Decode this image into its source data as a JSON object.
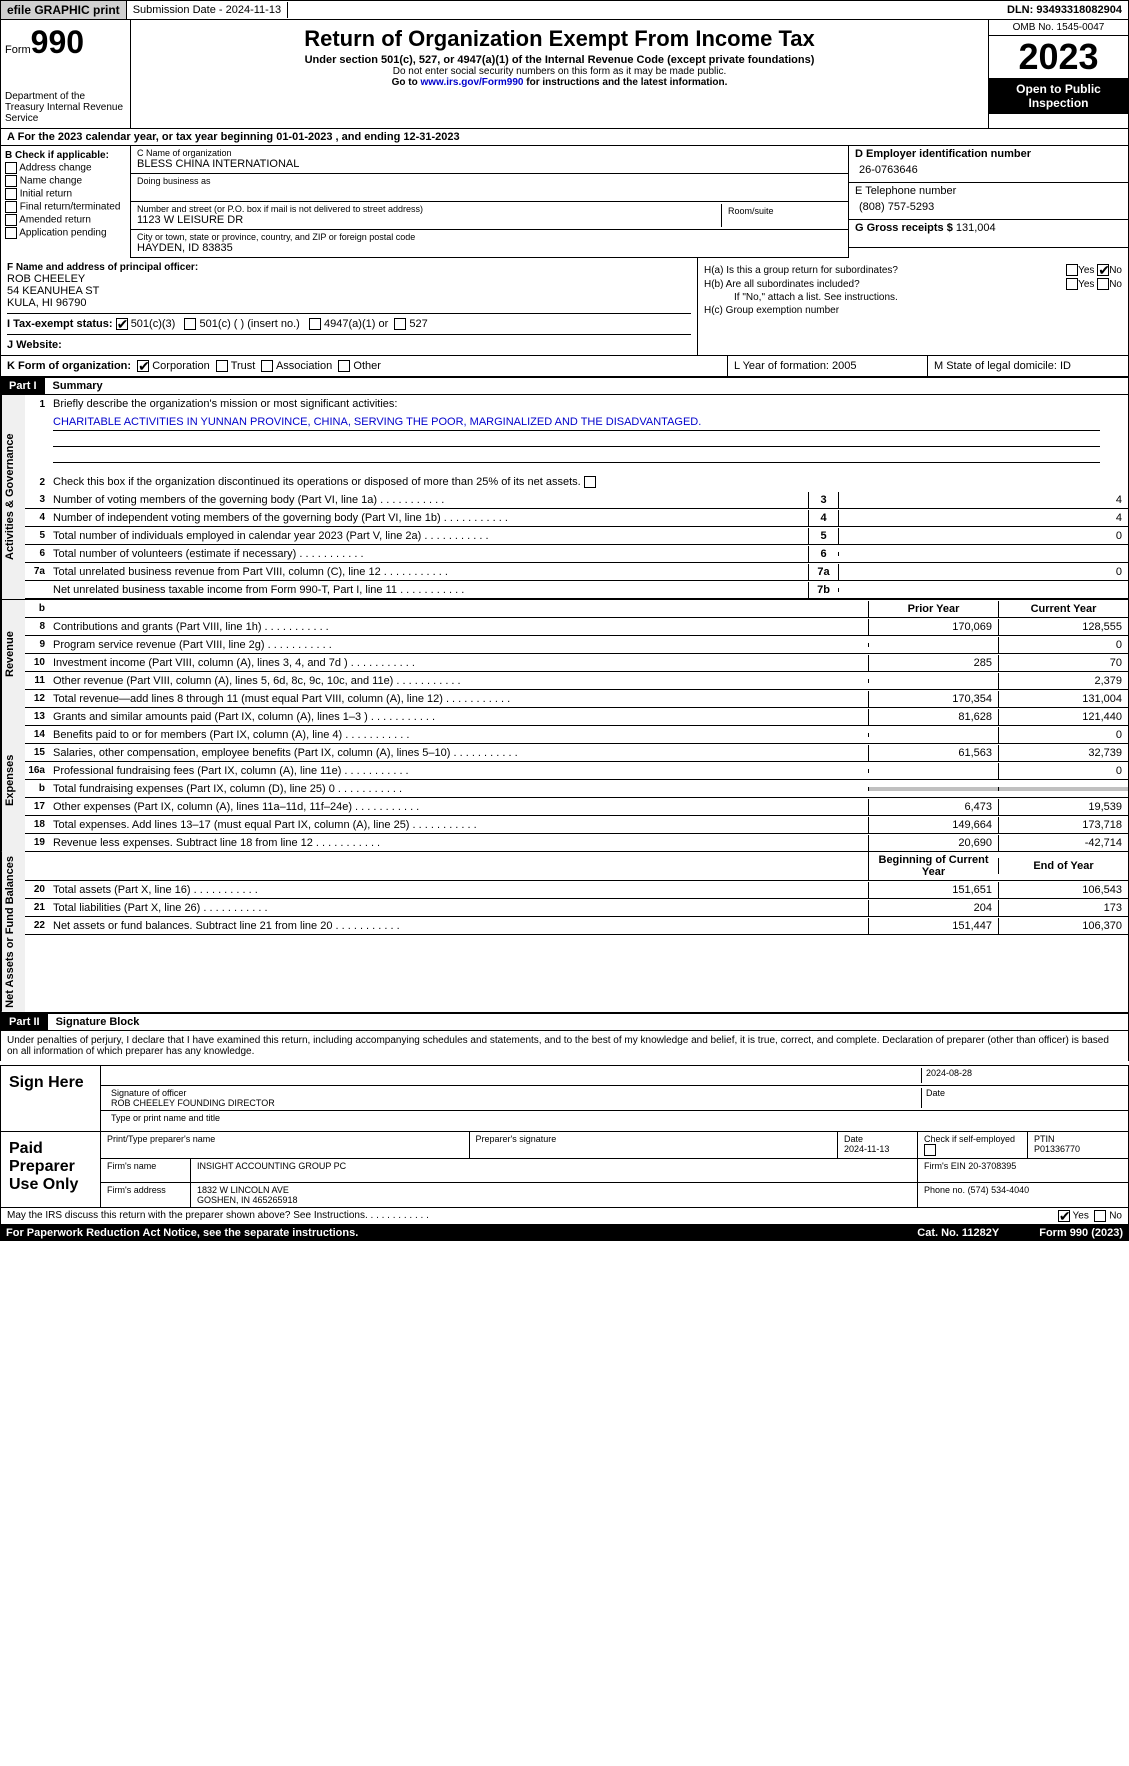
{
  "topbar": {
    "efile": "efile GRAPHIC print",
    "submission": "Submission Date - 2024-11-13",
    "dln": "DLN: 93493318082904"
  },
  "header": {
    "form": "Form",
    "num": "990",
    "dept": "Department of the Treasury Internal Revenue Service",
    "title": "Return of Organization Exempt From Income Tax",
    "sub": "Under section 501(c), 527, or 4947(a)(1) of the Internal Revenue Code (except private foundations)",
    "ssn": "Do not enter social security numbers on this form as it may be made public.",
    "goto_pre": "Go to ",
    "goto_link": "www.irs.gov/Form990",
    "goto_post": " for instructions and the latest information.",
    "omb": "OMB No. 1545-0047",
    "year": "2023",
    "inspect": "Open to Public Inspection"
  },
  "rowA": "For the 2023 calendar year, or tax year beginning 01-01-2023     , and ending 12-31-2023",
  "boxB": {
    "title": "B Check if applicable:",
    "opts": [
      "Address change",
      "Name change",
      "Initial return",
      "Final return/terminated",
      "Amended return",
      "Application pending"
    ]
  },
  "boxC": {
    "name_lbl": "C Name of organization",
    "name": "BLESS CHINA INTERNATIONAL",
    "dba_lbl": "Doing business as",
    "dba": "",
    "street_lbl": "Number and street (or P.O. box if mail is not delivered to street address)",
    "street": "1123 W LEISURE DR",
    "room_lbl": "Room/suite",
    "city_lbl": "City or town, state or province, country, and ZIP or foreign postal code",
    "city": "HAYDEN, ID  83835"
  },
  "boxD": {
    "ein_lbl": "D Employer identification number",
    "ein": "26-0763646",
    "phone_lbl": "E Telephone number",
    "phone": "(808) 757-5293",
    "gross_lbl": "G Gross receipts $",
    "gross": "131,004"
  },
  "boxF": {
    "lbl": "F  Name and address of principal officer:",
    "name": "ROB CHEELEY",
    "addr1": "54 KEANUHEA ST",
    "addr2": "KULA, HI  96790"
  },
  "boxH": {
    "a": "H(a)  Is this a group return for subordinates?",
    "b": "H(b)  Are all subordinates included?",
    "note": "If \"No,\" attach a list. See instructions.",
    "c": "H(c)  Group exemption number",
    "yes": "Yes",
    "no": "No"
  },
  "rowI": {
    "lbl": "I   Tax-exempt status:",
    "o1": "501(c)(3)",
    "o2": "501(c) (  ) (insert no.)",
    "o3": "4947(a)(1) or",
    "o4": "527"
  },
  "rowJ": "J   Website:",
  "rowK": {
    "lbl": "K Form of organization:",
    "o1": "Corporation",
    "o2": "Trust",
    "o3": "Association",
    "o4": "Other",
    "L": "L Year of formation: 2005",
    "M": "M State of legal domicile: ID"
  },
  "part1": {
    "hdr": "Part I",
    "title": "Summary",
    "l1_lbl": "Briefly describe the organization's mission or most significant activities:",
    "l1_val": "CHARITABLE ACTIVITIES IN YUNNAN PROVINCE, CHINA, SERVING THE POOR, MARGINALIZED AND THE DISADVANTAGED.",
    "l2": "Check this box  if the organization discontinued its operations or disposed of more than 25% of its net assets.",
    "lines_gov": [
      {
        "n": "3",
        "d": "Number of voting members of the governing body (Part VI, line 1a)",
        "b": "3",
        "v": "4"
      },
      {
        "n": "4",
        "d": "Number of independent voting members of the governing body (Part VI, line 1b)",
        "b": "4",
        "v": "4"
      },
      {
        "n": "5",
        "d": "Total number of individuals employed in calendar year 2023 (Part V, line 2a)",
        "b": "5",
        "v": "0"
      },
      {
        "n": "6",
        "d": "Total number of volunteers (estimate if necessary)",
        "b": "6",
        "v": ""
      },
      {
        "n": "7a",
        "d": "Total unrelated business revenue from Part VIII, column (C), line 12",
        "b": "7a",
        "v": "0"
      },
      {
        "n": "",
        "d": "Net unrelated business taxable income from Form 990-T, Part I, line 11",
        "b": "7b",
        "v": ""
      }
    ],
    "col_prior": "Prior Year",
    "col_curr": "Current Year",
    "rev": [
      {
        "n": "8",
        "d": "Contributions and grants (Part VIII, line 1h)",
        "p": "170,069",
        "c": "128,555"
      },
      {
        "n": "9",
        "d": "Program service revenue (Part VIII, line 2g)",
        "p": "",
        "c": "0"
      },
      {
        "n": "10",
        "d": "Investment income (Part VIII, column (A), lines 3, 4, and 7d )",
        "p": "285",
        "c": "70"
      },
      {
        "n": "11",
        "d": "Other revenue (Part VIII, column (A), lines 5, 6d, 8c, 9c, 10c, and 11e)",
        "p": "",
        "c": "2,379"
      },
      {
        "n": "12",
        "d": "Total revenue—add lines 8 through 11 (must equal Part VIII, column (A), line 12)",
        "p": "170,354",
        "c": "131,004"
      }
    ],
    "exp": [
      {
        "n": "13",
        "d": "Grants and similar amounts paid (Part IX, column (A), lines 1–3 )",
        "p": "81,628",
        "c": "121,440"
      },
      {
        "n": "14",
        "d": "Benefits paid to or for members (Part IX, column (A), line 4)",
        "p": "",
        "c": "0"
      },
      {
        "n": "15",
        "d": "Salaries, other compensation, employee benefits (Part IX, column (A), lines 5–10)",
        "p": "61,563",
        "c": "32,739"
      },
      {
        "n": "16a",
        "d": "Professional fundraising fees (Part IX, column (A), line 11e)",
        "p": "",
        "c": "0"
      },
      {
        "n": "b",
        "d": "Total fundraising expenses (Part IX, column (D), line 25) 0",
        "p": "shade",
        "c": "shade"
      },
      {
        "n": "17",
        "d": "Other expenses (Part IX, column (A), lines 11a–11d, 11f–24e)",
        "p": "6,473",
        "c": "19,539"
      },
      {
        "n": "18",
        "d": "Total expenses. Add lines 13–17 (must equal Part IX, column (A), line 25)",
        "p": "149,664",
        "c": "173,718"
      },
      {
        "n": "19",
        "d": "Revenue less expenses. Subtract line 18 from line 12",
        "p": "20,690",
        "c": "-42,714"
      }
    ],
    "col_beg": "Beginning of Current Year",
    "col_end": "End of Year",
    "net": [
      {
        "n": "20",
        "d": "Total assets (Part X, line 16)",
        "p": "151,651",
        "c": "106,543"
      },
      {
        "n": "21",
        "d": "Total liabilities (Part X, line 26)",
        "p": "204",
        "c": "173"
      },
      {
        "n": "22",
        "d": "Net assets or fund balances. Subtract line 21 from line 20",
        "p": "151,447",
        "c": "106,370"
      }
    ],
    "vtab_gov": "Activities & Governance",
    "vtab_rev": "Revenue",
    "vtab_exp": "Expenses",
    "vtab_net": "Net Assets or Fund Balances"
  },
  "part2": {
    "hdr": "Part II",
    "title": "Signature Block",
    "declare": "Under penalties of perjury, I declare that I have examined this return, including accompanying schedules and statements, and to the best of my knowledge and belief, it is true, correct, and complete. Declaration of preparer (other than officer) is based on all information of which preparer has any knowledge.",
    "sign_here": "Sign Here",
    "sig_date": "2024-08-28",
    "sig_lbl": "Signature of officer",
    "sig_name": "ROB CHEELEY FOUNDING DIRECTOR",
    "sig_type_lbl": "Type or print name and title",
    "date_lbl": "Date",
    "paid": "Paid Preparer Use Only",
    "prep_name_lbl": "Print/Type preparer's name",
    "prep_sig_lbl": "Preparer's signature",
    "prep_date_lbl": "Date",
    "prep_date": "2024-11-13",
    "self_lbl": "Check          if self-employed",
    "ptin_lbl": "PTIN",
    "ptin": "P01336770",
    "firm_name_lbl": "Firm's name",
    "firm_name": "INSIGHT ACCOUNTING GROUP PC",
    "firm_ein_lbl": "Firm's EIN",
    "firm_ein": "20-3708395",
    "firm_addr_lbl": "Firm's address",
    "firm_addr1": "1832 W LINCOLN AVE",
    "firm_addr2": "GOSHEN, IN  465265918",
    "firm_phone_lbl": "Phone no.",
    "firm_phone": "(574) 534-4040",
    "discuss": "May the IRS discuss this return with the preparer shown above? See Instructions."
  },
  "footer": {
    "paperwork": "For Paperwork Reduction Act Notice, see the separate instructions.",
    "cat": "Cat. No. 11282Y",
    "form": "Form 990 (2023)"
  }
}
